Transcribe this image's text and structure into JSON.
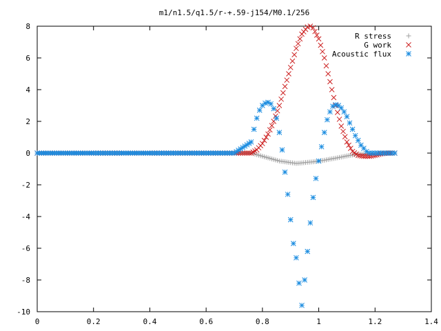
{
  "chart_data": {
    "type": "scatter",
    "title": "m1/n1.5/q1.5/r-+.59-j154/M0.1/256",
    "xlabel": "",
    "ylabel": "",
    "xlim": [
      0,
      1.4
    ],
    "ylim": [
      -10,
      8
    ],
    "x_ticks": [
      "0",
      "0.2",
      "0.4",
      "0.6",
      "0.8",
      "1",
      "1.2",
      "1.4"
    ],
    "y_ticks": [
      "8",
      "6",
      "4",
      "2",
      "0",
      "-2",
      "-4",
      "-6",
      "-8",
      "-10"
    ],
    "grid": false,
    "legend_position": "top-right",
    "series": [
      {
        "name": "R stress",
        "marker": "plus",
        "color": "#a0a0a0",
        "x": [
          0.0,
          0.1,
          0.2,
          0.3,
          0.4,
          0.5,
          0.6,
          0.7,
          0.76,
          0.78,
          0.8,
          0.82,
          0.84,
          0.86,
          0.88,
          0.9,
          0.92,
          0.94,
          0.96,
          0.98,
          1.0,
          1.02,
          1.04,
          1.06,
          1.08,
          1.1,
          1.12,
          1.14,
          1.16,
          1.18,
          1.2,
          1.22,
          1.24,
          1.26,
          1.27
        ],
        "y": [
          0.0,
          0.0,
          0.0,
          0.0,
          0.0,
          0.0,
          0.0,
          0.0,
          0.0,
          -0.1,
          -0.2,
          -0.3,
          -0.4,
          -0.5,
          -0.55,
          -0.6,
          -0.65,
          -0.62,
          -0.58,
          -0.55,
          -0.5,
          -0.45,
          -0.38,
          -0.32,
          -0.25,
          -0.18,
          -0.12,
          -0.08,
          -0.05,
          -0.03,
          -0.01,
          0.0,
          0.0,
          0.0,
          0.0
        ]
      },
      {
        "name": "G work",
        "marker": "cross",
        "color": "#cc2020",
        "x": [
          0.0,
          0.1,
          0.2,
          0.3,
          0.4,
          0.5,
          0.6,
          0.7,
          0.76,
          0.78,
          0.8,
          0.82,
          0.84,
          0.86,
          0.88,
          0.9,
          0.92,
          0.94,
          0.96,
          0.97,
          0.98,
          1.0,
          1.02,
          1.04,
          1.06,
          1.08,
          1.1,
          1.12,
          1.14,
          1.16,
          1.18,
          1.2,
          1.22,
          1.24,
          1.26,
          1.27
        ],
        "y": [
          0.0,
          0.0,
          0.0,
          0.0,
          0.0,
          0.0,
          0.0,
          0.0,
          0.0,
          0.2,
          0.6,
          1.2,
          2.0,
          3.0,
          4.2,
          5.4,
          6.6,
          7.5,
          7.95,
          8.0,
          7.9,
          7.2,
          6.0,
          4.5,
          3.0,
          1.7,
          0.7,
          0.1,
          -0.15,
          -0.2,
          -0.2,
          -0.15,
          -0.05,
          0.0,
          0.0,
          0.0
        ]
      },
      {
        "name": "Acoustic flux",
        "marker": "star",
        "color": "#1a8ce0",
        "x": [
          0.0,
          0.1,
          0.2,
          0.3,
          0.4,
          0.5,
          0.6,
          0.7,
          0.76,
          0.77,
          0.78,
          0.79,
          0.8,
          0.81,
          0.82,
          0.83,
          0.84,
          0.85,
          0.86,
          0.87,
          0.88,
          0.89,
          0.9,
          0.91,
          0.92,
          0.93,
          0.94,
          0.95,
          0.96,
          0.97,
          0.98,
          0.99,
          1.0,
          1.01,
          1.02,
          1.03,
          1.04,
          1.05,
          1.06,
          1.07,
          1.08,
          1.09,
          1.1,
          1.11,
          1.12,
          1.13,
          1.14,
          1.15,
          1.16,
          1.17,
          1.18,
          1.19,
          1.2,
          1.21,
          1.22,
          1.23,
          1.24,
          1.25,
          1.26,
          1.27
        ],
        "y": [
          0.0,
          0.0,
          0.0,
          0.0,
          0.0,
          0.0,
          0.0,
          0.0,
          0.7,
          1.5,
          2.2,
          2.7,
          3.0,
          3.15,
          3.2,
          3.1,
          2.8,
          2.2,
          1.3,
          0.2,
          -1.2,
          -2.6,
          -4.2,
          -5.7,
          -6.6,
          -8.2,
          -9.6,
          -8.0,
          -6.2,
          -4.4,
          -2.8,
          -1.6,
          -0.5,
          0.4,
          1.3,
          2.1,
          2.6,
          2.95,
          3.05,
          3.0,
          2.85,
          2.6,
          2.3,
          1.9,
          1.5,
          1.1,
          0.8,
          0.5,
          0.3,
          0.1,
          0.0,
          0.0,
          0.0,
          0.0,
          0.0,
          0.0,
          0.0,
          0.0,
          0.0,
          0.0
        ]
      }
    ]
  }
}
